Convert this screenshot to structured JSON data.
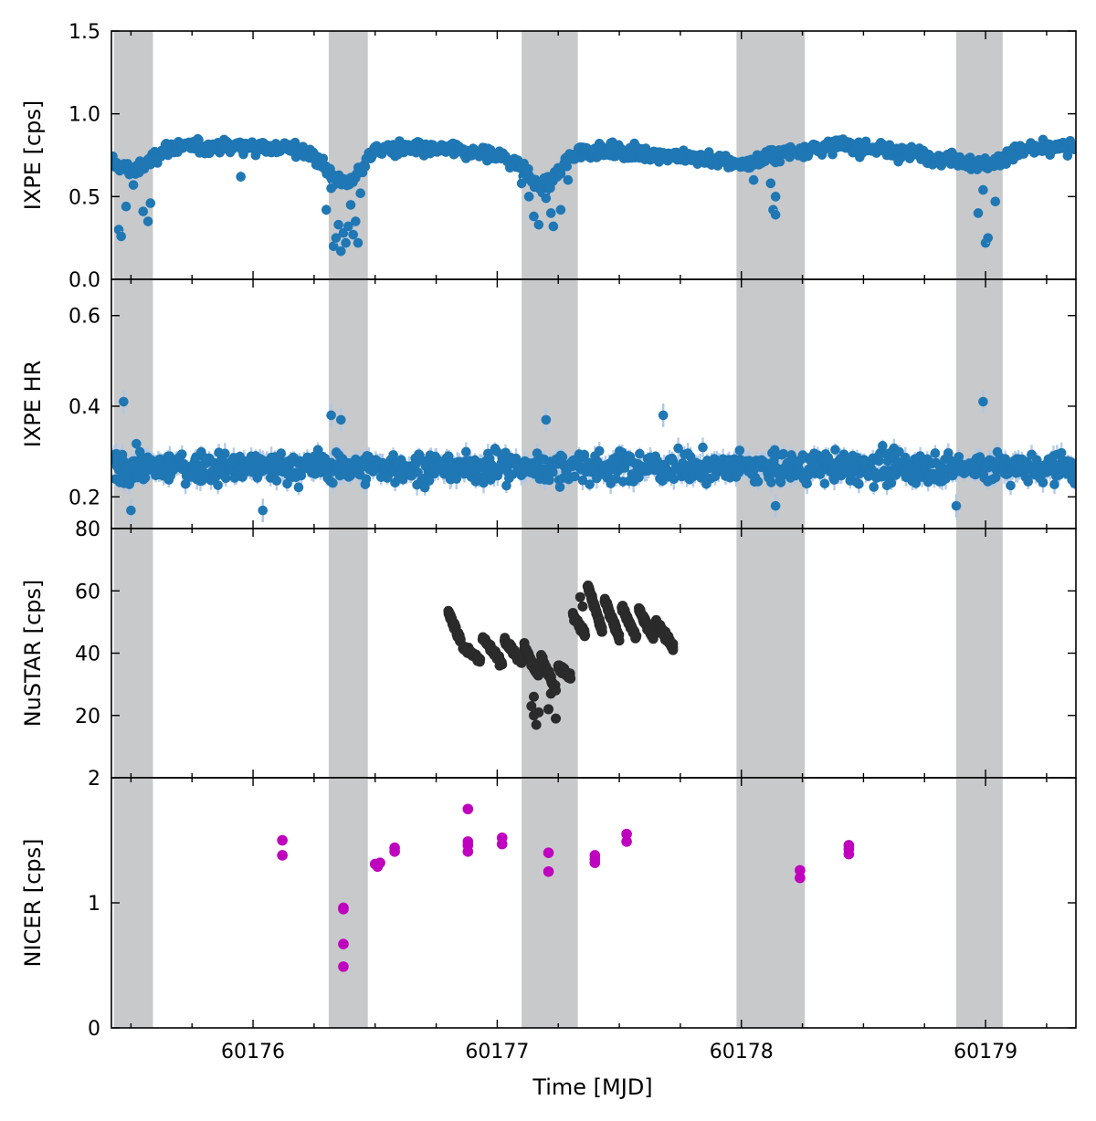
{
  "chart_data": {
    "type": "scatter",
    "x_axis": {
      "label": "Time [MJD]",
      "range": [
        60175.42,
        60179.37
      ],
      "ticks": [
        60176,
        60177,
        60178,
        60179
      ],
      "tick_labels": [
        "60176",
        "60177",
        "60178",
        "60179"
      ]
    },
    "shaded_intervals": [
      [
        60175.43,
        60175.59
      ],
      [
        60176.31,
        60176.47
      ],
      [
        60177.1,
        60177.33
      ],
      [
        60177.98,
        60178.26
      ],
      [
        60178.88,
        60179.07
      ]
    ],
    "colors": {
      "ixpe": "#1f77b4",
      "ixpe_err": "#aec7e8",
      "nustar": "#2b2b2b",
      "nicer": "#bf00bf",
      "shade": "#c8c9cb"
    },
    "panels": [
      {
        "id": "ixpe_rate",
        "ylabel": "IXPE [cps]",
        "ylim": [
          0.0,
          1.5
        ],
        "yticks": [
          0.0,
          0.5,
          1.0,
          1.5
        ],
        "ytick_labels": [
          "0.0",
          "0.5",
          "1.0",
          "1.5"
        ],
        "series": [
          {
            "marker": "blue-circle",
            "baseline": [
              [
                60175.42,
                0.71
              ],
              [
                60175.46,
                0.68
              ],
              [
                60175.5,
                0.66
              ],
              [
                60175.54,
                0.67
              ],
              [
                60175.58,
                0.72
              ],
              [
                60175.62,
                0.77
              ],
              [
                60175.66,
                0.8
              ],
              [
                60175.8,
                0.8
              ],
              [
                60176.0,
                0.81
              ],
              [
                60176.2,
                0.78
              ],
              [
                60176.27,
                0.72
              ],
              [
                60176.3,
                0.66
              ],
              [
                60176.34,
                0.6
              ],
              [
                60176.38,
                0.58
              ],
              [
                60176.42,
                0.62
              ],
              [
                60176.46,
                0.71
              ],
              [
                60176.5,
                0.78
              ],
              [
                60176.6,
                0.79
              ],
              [
                60176.8,
                0.78
              ],
              [
                60177.0,
                0.75
              ],
              [
                60177.08,
                0.7
              ],
              [
                60177.12,
                0.64
              ],
              [
                60177.16,
                0.57
              ],
              [
                60177.2,
                0.56
              ],
              [
                60177.24,
                0.62
              ],
              [
                60177.29,
                0.72
              ],
              [
                60177.34,
                0.78
              ],
              [
                60177.5,
                0.77
              ],
              [
                60177.8,
                0.74
              ],
              [
                60177.98,
                0.7
              ],
              [
                60178.05,
                0.7
              ],
              [
                60178.1,
                0.74
              ],
              [
                60178.2,
                0.77
              ],
              [
                60178.4,
                0.81
              ],
              [
                60178.6,
                0.78
              ],
              [
                60178.8,
                0.74
              ],
              [
                60178.9,
                0.72
              ],
              [
                60178.98,
                0.69
              ],
              [
                60179.04,
                0.7
              ],
              [
                60179.1,
                0.77
              ],
              [
                60179.37,
                0.8
              ]
            ],
            "scatter": 0.035,
            "error": 0.05,
            "outliers": [
              [
                60175.45,
                0.3
              ],
              [
                60175.46,
                0.26
              ],
              [
                60175.48,
                0.44
              ],
              [
                60175.51,
                0.57
              ],
              [
                60175.55,
                0.41
              ],
              [
                60175.57,
                0.35
              ],
              [
                60175.58,
                0.46
              ],
              [
                60175.95,
                0.62
              ],
              [
                60176.3,
                0.42
              ],
              [
                60176.32,
                0.55
              ],
              [
                60176.33,
                0.2
              ],
              [
                60176.34,
                0.25
              ],
              [
                60176.35,
                0.33
              ],
              [
                60176.36,
                0.17
              ],
              [
                60176.37,
                0.28
              ],
              [
                60176.38,
                0.22
              ],
              [
                60176.39,
                0.32
              ],
              [
                60176.4,
                0.45
              ],
              [
                60176.41,
                0.27
              ],
              [
                60176.42,
                0.35
              ],
              [
                60176.43,
                0.22
              ],
              [
                60176.44,
                0.52
              ],
              [
                60177.1,
                0.58
              ],
              [
                60177.13,
                0.5
              ],
              [
                60177.15,
                0.38
              ],
              [
                60177.17,
                0.33
              ],
              [
                60177.2,
                0.49
              ],
              [
                60177.22,
                0.4
              ],
              [
                60177.23,
                0.32
              ],
              [
                60177.26,
                0.42
              ],
              [
                60177.29,
                0.6
              ],
              [
                60178.05,
                0.6
              ],
              [
                60178.12,
                0.58
              ],
              [
                60178.13,
                0.42
              ],
              [
                60178.14,
                0.39
              ],
              [
                60178.14,
                0.5
              ],
              [
                60178.97,
                0.4
              ],
              [
                60178.99,
                0.54
              ],
              [
                60179.0,
                0.22
              ],
              [
                60179.01,
                0.25
              ],
              [
                60179.04,
                0.47
              ]
            ]
          }
        ]
      },
      {
        "id": "ixpe_hr",
        "ylabel": "IXPE HR",
        "ylim": [
          0.13,
          0.68
        ],
        "yticks": [
          0.2,
          0.4,
          0.6
        ],
        "ytick_labels": [
          "0.2",
          "0.4",
          "0.6"
        ],
        "series": [
          {
            "marker": "blue-circle",
            "baseline": [
              [
                60175.42,
                0.265
              ],
              [
                60179.37,
                0.265
              ]
            ],
            "scatter": 0.028,
            "error": 0.04,
            "outliers": [
              [
                60175.47,
                0.41
              ],
              [
                60175.5,
                0.17
              ],
              [
                60176.04,
                0.17
              ],
              [
                60176.32,
                0.38
              ],
              [
                60176.36,
                0.37
              ],
              [
                60177.2,
                0.37
              ],
              [
                60177.68,
                0.38
              ],
              [
                60178.14,
                0.18
              ],
              [
                60178.99,
                0.41
              ],
              [
                60178.88,
                0.18
              ]
            ]
          }
        ]
      },
      {
        "id": "nustar",
        "ylabel": "NuSTAR [cps]",
        "ylim": [
          0,
          80
        ],
        "yticks": [
          20,
          40,
          60,
          80
        ],
        "ytick_labels": [
          "20",
          "40",
          "60",
          "80"
        ],
        "series": [
          {
            "marker": "dark-circle",
            "segments": [
              [
                60176.8,
                60176.85,
                53,
                44
              ],
              [
                60176.86,
                60176.93,
                42,
                38
              ],
              [
                60176.94,
                60177.02,
                45,
                37
              ],
              [
                60177.03,
                60177.1,
                44,
                37
              ],
              [
                60177.11,
                60177.17,
                42,
                33
              ],
              [
                60177.18,
                60177.24,
                39,
                28
              ],
              [
                60177.25,
                60177.3,
                36,
                32
              ],
              [
                60177.31,
                60177.36,
                52,
                46
              ],
              [
                60177.37,
                60177.43,
                62,
                47
              ],
              [
                60177.44,
                60177.5,
                57,
                45
              ],
              [
                60177.51,
                60177.57,
                55,
                45
              ],
              [
                60177.58,
                60177.64,
                54,
                45
              ],
              [
                60177.65,
                60177.72,
                50,
                42
              ]
            ],
            "outliers": [
              [
                60177.14,
                23
              ],
              [
                60177.15,
                20
              ],
              [
                60177.16,
                17
              ],
              [
                60177.17,
                21
              ],
              [
                60177.15,
                26
              ],
              [
                60177.21,
                22
              ],
              [
                60177.22,
                27
              ],
              [
                60177.24,
                19
              ],
              [
                60177.14,
                36
              ],
              [
                60177.01,
                36
              ],
              [
                60177.34,
                58
              ],
              [
                60177.35,
                55
              ],
              [
                60177.72,
                43
              ],
              [
                60177.72,
                41
              ]
            ]
          }
        ]
      },
      {
        "id": "nicer",
        "ylabel": "NICER [cps]",
        "ylim": [
          0,
          2
        ],
        "yticks": [
          0,
          1,
          2
        ],
        "ytick_labels": [
          "0",
          "1",
          "2"
        ],
        "series": [
          {
            "marker": "magenta-circle",
            "points": [
              [
                60176.12,
                1.5
              ],
              [
                60176.12,
                1.38
              ],
              [
                60176.37,
                0.96
              ],
              [
                60176.37,
                0.95
              ],
              [
                60176.37,
                0.67
              ],
              [
                60176.37,
                0.49
              ],
              [
                60176.5,
                1.31
              ],
              [
                60176.51,
                1.29
              ],
              [
                60176.52,
                1.32
              ],
              [
                60176.58,
                1.44
              ],
              [
                60176.58,
                1.41
              ],
              [
                60176.88,
                1.75
              ],
              [
                60176.88,
                1.49
              ],
              [
                60176.88,
                1.41
              ],
              [
                60176.88,
                1.46
              ],
              [
                60177.02,
                1.52
              ],
              [
                60177.02,
                1.47
              ],
              [
                60177.21,
                1.4
              ],
              [
                60177.21,
                1.25
              ],
              [
                60177.4,
                1.32
              ],
              [
                60177.4,
                1.38
              ],
              [
                60177.4,
                1.35
              ],
              [
                60177.53,
                1.55
              ],
              [
                60177.53,
                1.49
              ],
              [
                60178.24,
                1.26
              ],
              [
                60178.24,
                1.2
              ],
              [
                60178.44,
                1.46
              ],
              [
                60178.44,
                1.43
              ],
              [
                60178.44,
                1.39
              ]
            ]
          }
        ]
      }
    ]
  }
}
